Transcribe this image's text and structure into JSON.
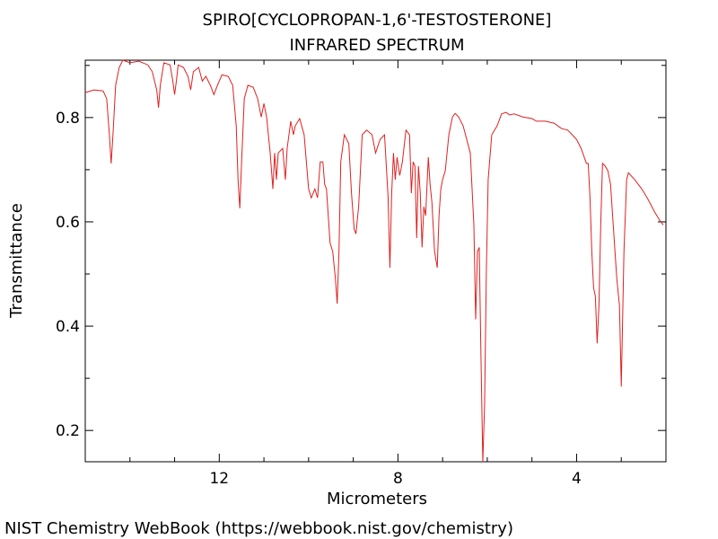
{
  "chart_data": {
    "type": "line",
    "title": "SPIRO[CYCLOPROPAN-1,6'-TESTOSTERONE]",
    "subtitle": "INFRARED SPECTRUM",
    "x_label": "Micrometers",
    "y_label": "Transmittance",
    "footer": "NIST Chemistry WebBook (https://webbook.nist.gov/chemistry)",
    "color": "#e02020",
    "xlim": [
      15,
      2
    ],
    "ylim": [
      0.14,
      0.91
    ],
    "xticks": [
      12,
      8,
      4
    ],
    "yticks": [
      0.2,
      0.4,
      0.6,
      0.8
    ],
    "xminor": [
      14,
      13,
      11,
      10,
      9,
      7,
      6,
      5,
      3
    ],
    "yminor": [
      0.3,
      0.5,
      0.7,
      0.9
    ],
    "x": [
      15.0,
      14.8,
      14.6,
      14.52,
      14.46,
      14.42,
      14.38,
      14.32,
      14.24,
      14.16,
      14.0,
      13.8,
      13.6,
      13.5,
      13.4,
      13.36,
      13.32,
      13.24,
      13.1,
      13.04,
      13.0,
      12.96,
      12.92,
      12.8,
      12.7,
      12.64,
      12.58,
      12.46,
      12.38,
      12.3,
      12.2,
      12.12,
      12.04,
      11.94,
      11.8,
      11.7,
      11.62,
      11.58,
      11.54,
      11.5,
      11.44,
      11.36,
      11.24,
      11.14,
      11.06,
      11.0,
      10.94,
      10.86,
      10.8,
      10.76,
      10.72,
      10.68,
      10.58,
      10.52,
      10.48,
      10.4,
      10.34,
      10.3,
      10.2,
      10.1,
      10.0,
      9.94,
      9.86,
      9.8,
      9.74,
      9.68,
      9.64,
      9.6,
      9.56,
      9.52,
      9.46,
      9.4,
      9.36,
      9.32,
      9.28,
      9.2,
      9.1,
      9.04,
      8.98,
      8.94,
      8.88,
      8.8,
      8.7,
      8.58,
      8.5,
      8.4,
      8.3,
      8.22,
      8.18,
      8.14,
      8.1,
      8.06,
      8.02,
      7.96,
      7.9,
      7.82,
      7.74,
      7.7,
      7.66,
      7.62,
      7.58,
      7.54,
      7.5,
      7.46,
      7.42,
      7.38,
      7.32,
      7.28,
      7.24,
      7.18,
      7.12,
      7.08,
      7.04,
      7.0,
      6.94,
      6.86,
      6.78,
      6.72,
      6.64,
      6.54,
      6.46,
      6.38,
      6.3,
      6.26,
      6.22,
      6.18,
      6.14,
      6.1,
      6.06,
      6.02,
      5.98,
      5.9,
      5.78,
      5.68,
      5.58,
      5.5,
      5.4,
      5.2,
      5.0,
      4.9,
      4.7,
      4.5,
      4.34,
      4.2,
      4.1,
      4.0,
      3.9,
      3.78,
      3.74,
      3.7,
      3.66,
      3.62,
      3.58,
      3.54,
      3.5,
      3.46,
      3.42,
      3.36,
      3.3,
      3.24,
      3.18,
      3.1,
      3.04,
      3.0,
      2.94,
      2.88,
      2.84,
      2.7,
      2.54,
      2.4,
      2.26,
      2.14,
      2.06
    ],
    "values": [
      0.848,
      0.853,
      0.851,
      0.836,
      0.767,
      0.712,
      0.767,
      0.862,
      0.896,
      0.91,
      0.905,
      0.908,
      0.901,
      0.888,
      0.853,
      0.819,
      0.862,
      0.905,
      0.901,
      0.87,
      0.844,
      0.87,
      0.901,
      0.896,
      0.879,
      0.853,
      0.888,
      0.896,
      0.87,
      0.879,
      0.862,
      0.844,
      0.862,
      0.882,
      0.879,
      0.862,
      0.784,
      0.681,
      0.626,
      0.715,
      0.836,
      0.862,
      0.858,
      0.836,
      0.801,
      0.827,
      0.801,
      0.732,
      0.663,
      0.732,
      0.681,
      0.732,
      0.741,
      0.681,
      0.741,
      0.793,
      0.767,
      0.784,
      0.798,
      0.767,
      0.663,
      0.646,
      0.663,
      0.646,
      0.715,
      0.715,
      0.672,
      0.663,
      0.612,
      0.56,
      0.543,
      0.491,
      0.443,
      0.543,
      0.715,
      0.767,
      0.75,
      0.655,
      0.586,
      0.577,
      0.629,
      0.767,
      0.776,
      0.767,
      0.732,
      0.758,
      0.767,
      0.646,
      0.512,
      0.655,
      0.732,
      0.681,
      0.724,
      0.689,
      0.715,
      0.776,
      0.767,
      0.655,
      0.715,
      0.707,
      0.569,
      0.707,
      0.655,
      0.551,
      0.629,
      0.612,
      0.724,
      0.672,
      0.638,
      0.543,
      0.512,
      0.612,
      0.663,
      0.681,
      0.698,
      0.767,
      0.801,
      0.808,
      0.801,
      0.784,
      0.758,
      0.732,
      0.594,
      0.413,
      0.543,
      0.551,
      0.336,
      0.14,
      0.25,
      0.508,
      0.681,
      0.767,
      0.784,
      0.807,
      0.81,
      0.805,
      0.807,
      0.801,
      0.798,
      0.793,
      0.793,
      0.789,
      0.779,
      0.776,
      0.767,
      0.758,
      0.741,
      0.712,
      0.712,
      0.646,
      0.543,
      0.474,
      0.457,
      0.367,
      0.439,
      0.594,
      0.712,
      0.707,
      0.698,
      0.672,
      0.594,
      0.491,
      0.439,
      0.284,
      0.543,
      0.681,
      0.694,
      0.681,
      0.663,
      0.643,
      0.62,
      0.603,
      0.594
    ]
  }
}
